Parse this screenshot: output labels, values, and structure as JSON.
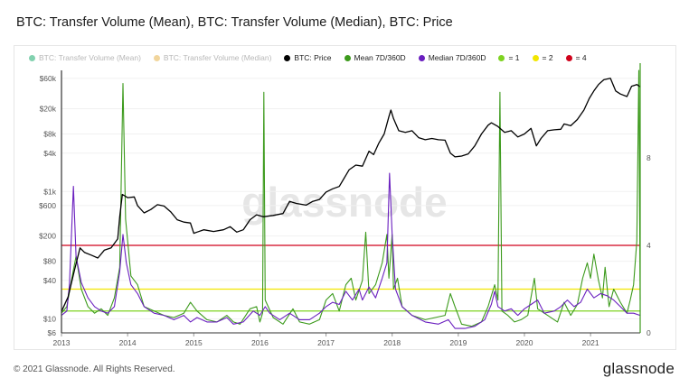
{
  "title": "BTC: Transfer Volume (Mean), BTC: Transfer Volume (Median), BTC: Price",
  "footer": "© 2021 Glassnode. All Rights Reserved.",
  "brand": "glassnode",
  "watermark": "glassnode",
  "legend": [
    {
      "label": "BTC: Transfer Volume (Mean)",
      "color": "#2fb37a",
      "enabled": false
    },
    {
      "label": "BTC: Transfer Volume (Median)",
      "color": "#e7b95a",
      "enabled": false
    },
    {
      "label": "BTC: Price",
      "color": "#000000",
      "enabled": true
    },
    {
      "label": "Mean 7D/360D",
      "color": "#3c9a1c",
      "enabled": true
    },
    {
      "label": "Median 7D/360D",
      "color": "#6a1fbf",
      "enabled": true
    },
    {
      "label": "= 1",
      "color": "#7ed321",
      "enabled": true
    },
    {
      "label": "= 2",
      "color": "#f2e600",
      "enabled": true
    },
    {
      "label": "= 4",
      "color": "#d0021b",
      "enabled": true
    }
  ],
  "chart_data": {
    "type": "line",
    "x_ticks": [
      "2013",
      "2014",
      "2015",
      "2016",
      "2017",
      "2018",
      "2019",
      "2020",
      "2021"
    ],
    "y_left_ticks": [
      "$6",
      "$10",
      "$40",
      "$80",
      "$200",
      "$600",
      "$1k",
      "$4k",
      "$8k",
      "$20k",
      "$60k"
    ],
    "y_left_values": [
      6,
      10,
      40,
      80,
      200,
      600,
      1000,
      4000,
      8000,
      20000,
      60000
    ],
    "y_left_scale": "log",
    "y_left_range": [
      6,
      80000
    ],
    "y_right_ticks": [
      "0",
      "4",
      "8"
    ],
    "y_right_range": [
      0,
      12
    ],
    "x_range": [
      2013.0,
      2021.75
    ],
    "reference_lines": [
      {
        "name": "= 1",
        "value": 1,
        "color": "#7ed321"
      },
      {
        "name": "= 2",
        "value": 2,
        "color": "#f2e600"
      },
      {
        "name": "= 4",
        "value": 4,
        "color": "#d0021b"
      }
    ],
    "series": [
      {
        "name": "BTC: Price",
        "axis": "left",
        "color": "#000000",
        "points": [
          [
            2013.0,
            13
          ],
          [
            2013.1,
            22
          ],
          [
            2013.2,
            60
          ],
          [
            2013.28,
            130
          ],
          [
            2013.35,
            110
          ],
          [
            2013.45,
            100
          ],
          [
            2013.55,
            90
          ],
          [
            2013.65,
            120
          ],
          [
            2013.75,
            130
          ],
          [
            2013.85,
            180
          ],
          [
            2013.88,
            400
          ],
          [
            2013.92,
            900
          ],
          [
            2014.0,
            800
          ],
          [
            2014.1,
            820
          ],
          [
            2014.15,
            600
          ],
          [
            2014.25,
            460
          ],
          [
            2014.35,
            520
          ],
          [
            2014.45,
            620
          ],
          [
            2014.55,
            590
          ],
          [
            2014.65,
            480
          ],
          [
            2014.75,
            360
          ],
          [
            2014.85,
            330
          ],
          [
            2014.95,
            320
          ],
          [
            2015.0,
            220
          ],
          [
            2015.05,
            230
          ],
          [
            2015.15,
            250
          ],
          [
            2015.3,
            235
          ],
          [
            2015.45,
            250
          ],
          [
            2015.55,
            280
          ],
          [
            2015.65,
            230
          ],
          [
            2015.75,
            250
          ],
          [
            2015.85,
            360
          ],
          [
            2015.95,
            430
          ],
          [
            2016.05,
            400
          ],
          [
            2016.2,
            420
          ],
          [
            2016.35,
            450
          ],
          [
            2016.45,
            700
          ],
          [
            2016.55,
            650
          ],
          [
            2016.7,
            610
          ],
          [
            2016.8,
            700
          ],
          [
            2016.9,
            750
          ],
          [
            2017.0,
            980
          ],
          [
            2017.1,
            1100
          ],
          [
            2017.2,
            1200
          ],
          [
            2017.35,
            2200
          ],
          [
            2017.45,
            2600
          ],
          [
            2017.55,
            2500
          ],
          [
            2017.65,
            4300
          ],
          [
            2017.72,
            3800
          ],
          [
            2017.8,
            5800
          ],
          [
            2017.88,
            8000
          ],
          [
            2017.95,
            15000
          ],
          [
            2017.98,
            19000
          ],
          [
            2018.02,
            14000
          ],
          [
            2018.1,
            9000
          ],
          [
            2018.2,
            8500
          ],
          [
            2018.3,
            9000
          ],
          [
            2018.4,
            7000
          ],
          [
            2018.5,
            6500
          ],
          [
            2018.6,
            6800
          ],
          [
            2018.7,
            6500
          ],
          [
            2018.8,
            6400
          ],
          [
            2018.88,
            4000
          ],
          [
            2018.95,
            3500
          ],
          [
            2019.05,
            3600
          ],
          [
            2019.15,
            3900
          ],
          [
            2019.25,
            5200
          ],
          [
            2019.35,
            8000
          ],
          [
            2019.45,
            11000
          ],
          [
            2019.5,
            12000
          ],
          [
            2019.6,
            10500
          ],
          [
            2019.7,
            8500
          ],
          [
            2019.8,
            9000
          ],
          [
            2019.9,
            7200
          ],
          [
            2020.0,
            8000
          ],
          [
            2020.1,
            9800
          ],
          [
            2020.18,
            5200
          ],
          [
            2020.25,
            6800
          ],
          [
            2020.35,
            9000
          ],
          [
            2020.45,
            9300
          ],
          [
            2020.55,
            9500
          ],
          [
            2020.6,
            11500
          ],
          [
            2020.7,
            10800
          ],
          [
            2020.8,
            13500
          ],
          [
            2020.9,
            19000
          ],
          [
            2020.98,
            29000
          ],
          [
            2021.05,
            38000
          ],
          [
            2021.12,
            48000
          ],
          [
            2021.2,
            57000
          ],
          [
            2021.3,
            60000
          ],
          [
            2021.38,
            38000
          ],
          [
            2021.45,
            34000
          ],
          [
            2021.55,
            31000
          ],
          [
            2021.62,
            45000
          ],
          [
            2021.7,
            48000
          ],
          [
            2021.75,
            44000
          ]
        ]
      },
      {
        "name": "Mean 7D/360D",
        "axis": "right",
        "color": "#3c9a1c",
        "points": [
          [
            2013.0,
            0.9
          ],
          [
            2013.08,
            1.2
          ],
          [
            2013.15,
            2.4
          ],
          [
            2013.22,
            3.5
          ],
          [
            2013.3,
            2.0
          ],
          [
            2013.4,
            1.2
          ],
          [
            2013.5,
            0.9
          ],
          [
            2013.6,
            1.1
          ],
          [
            2013.7,
            0.8
          ],
          [
            2013.8,
            1.6
          ],
          [
            2013.88,
            3.0
          ],
          [
            2013.93,
            11.4
          ],
          [
            2013.97,
            5.2
          ],
          [
            2014.05,
            2.6
          ],
          [
            2014.15,
            2.2
          ],
          [
            2014.25,
            1.2
          ],
          [
            2014.4,
            1.0
          ],
          [
            2014.55,
            0.8
          ],
          [
            2014.7,
            0.7
          ],
          [
            2014.85,
            0.9
          ],
          [
            2014.95,
            1.4
          ],
          [
            2015.05,
            1.0
          ],
          [
            2015.2,
            0.6
          ],
          [
            2015.35,
            0.5
          ],
          [
            2015.5,
            0.8
          ],
          [
            2015.6,
            0.5
          ],
          [
            2015.7,
            0.4
          ],
          [
            2015.85,
            1.1
          ],
          [
            2015.95,
            1.2
          ],
          [
            2016.0,
            0.5
          ],
          [
            2016.04,
            0.9
          ],
          [
            2016.06,
            11.0
          ],
          [
            2016.08,
            1.5
          ],
          [
            2016.2,
            0.7
          ],
          [
            2016.35,
            0.4
          ],
          [
            2016.5,
            1.1
          ],
          [
            2016.6,
            0.5
          ],
          [
            2016.75,
            0.4
          ],
          [
            2016.9,
            0.6
          ],
          [
            2017.0,
            1.5
          ],
          [
            2017.1,
            1.8
          ],
          [
            2017.2,
            1.0
          ],
          [
            2017.3,
            2.2
          ],
          [
            2017.38,
            2.5
          ],
          [
            2017.45,
            1.5
          ],
          [
            2017.55,
            2.4
          ],
          [
            2017.6,
            4.6
          ],
          [
            2017.65,
            1.8
          ],
          [
            2017.75,
            2.2
          ],
          [
            2017.85,
            3.2
          ],
          [
            2017.92,
            4.5
          ],
          [
            2017.95,
            2.5
          ],
          [
            2018.0,
            4.5
          ],
          [
            2018.02,
            2.0
          ],
          [
            2018.08,
            2.5
          ],
          [
            2018.15,
            1.2
          ],
          [
            2018.3,
            0.8
          ],
          [
            2018.5,
            0.6
          ],
          [
            2018.65,
            0.7
          ],
          [
            2018.8,
            0.8
          ],
          [
            2018.88,
            1.8
          ],
          [
            2018.95,
            1.2
          ],
          [
            2019.05,
            0.4
          ],
          [
            2019.2,
            0.3
          ],
          [
            2019.35,
            0.5
          ],
          [
            2019.45,
            1.2
          ],
          [
            2019.55,
            2.2
          ],
          [
            2019.6,
            1.5
          ],
          [
            2019.63,
            11.0
          ],
          [
            2019.66,
            1.0
          ],
          [
            2019.75,
            0.8
          ],
          [
            2019.85,
            0.5
          ],
          [
            2019.95,
            0.6
          ],
          [
            2020.05,
            0.8
          ],
          [
            2020.15,
            2.5
          ],
          [
            2020.2,
            1.1
          ],
          [
            2020.35,
            0.8
          ],
          [
            2020.5,
            0.5
          ],
          [
            2020.6,
            1.4
          ],
          [
            2020.7,
            0.8
          ],
          [
            2020.8,
            1.3
          ],
          [
            2020.88,
            2.5
          ],
          [
            2020.95,
            3.2
          ],
          [
            2021.0,
            2.5
          ],
          [
            2021.05,
            3.6
          ],
          [
            2021.12,
            2.4
          ],
          [
            2021.18,
            1.6
          ],
          [
            2021.22,
            3.0
          ],
          [
            2021.28,
            1.2
          ],
          [
            2021.35,
            2.0
          ],
          [
            2021.45,
            1.4
          ],
          [
            2021.55,
            0.9
          ],
          [
            2021.6,
            1.5
          ],
          [
            2021.65,
            2.2
          ],
          [
            2021.7,
            4.2
          ],
          [
            2021.73,
            12.0
          ],
          [
            2021.75,
            1.5
          ]
        ]
      },
      {
        "name": "Median 7D/360D",
        "axis": "right",
        "color": "#6a1fbf",
        "points": [
          [
            2013.0,
            0.8
          ],
          [
            2013.08,
            1.0
          ],
          [
            2013.12,
            2.2
          ],
          [
            2013.18,
            6.7
          ],
          [
            2013.22,
            3.5
          ],
          [
            2013.3,
            2.3
          ],
          [
            2013.4,
            1.6
          ],
          [
            2013.5,
            1.2
          ],
          [
            2013.6,
            1.0
          ],
          [
            2013.7,
            0.9
          ],
          [
            2013.8,
            1.2
          ],
          [
            2013.88,
            2.8
          ],
          [
            2013.93,
            4.5
          ],
          [
            2013.98,
            3.2
          ],
          [
            2014.05,
            2.2
          ],
          [
            2014.15,
            1.8
          ],
          [
            2014.25,
            1.2
          ],
          [
            2014.4,
            0.9
          ],
          [
            2014.55,
            0.8
          ],
          [
            2014.7,
            0.6
          ],
          [
            2014.85,
            0.8
          ],
          [
            2014.95,
            0.5
          ],
          [
            2015.05,
            0.7
          ],
          [
            2015.2,
            0.5
          ],
          [
            2015.35,
            0.5
          ],
          [
            2015.5,
            0.7
          ],
          [
            2015.6,
            0.4
          ],
          [
            2015.75,
            0.5
          ],
          [
            2015.9,
            1.0
          ],
          [
            2016.0,
            0.8
          ],
          [
            2016.08,
            1.2
          ],
          [
            2016.15,
            0.9
          ],
          [
            2016.3,
            0.6
          ],
          [
            2016.45,
            0.9
          ],
          [
            2016.6,
            0.6
          ],
          [
            2016.75,
            0.6
          ],
          [
            2016.9,
            0.9
          ],
          [
            2017.0,
            1.2
          ],
          [
            2017.1,
            1.4
          ],
          [
            2017.2,
            1.3
          ],
          [
            2017.3,
            1.9
          ],
          [
            2017.4,
            1.5
          ],
          [
            2017.5,
            2.0
          ],
          [
            2017.55,
            1.5
          ],
          [
            2017.65,
            2.1
          ],
          [
            2017.75,
            1.6
          ],
          [
            2017.85,
            2.5
          ],
          [
            2017.92,
            3.2
          ],
          [
            2017.96,
            7.3
          ],
          [
            2018.0,
            4.5
          ],
          [
            2018.05,
            2.0
          ],
          [
            2018.15,
            1.2
          ],
          [
            2018.3,
            0.8
          ],
          [
            2018.5,
            0.5
          ],
          [
            2018.7,
            0.4
          ],
          [
            2018.85,
            0.6
          ],
          [
            2018.95,
            0.2
          ],
          [
            2019.1,
            0.2
          ],
          [
            2019.25,
            0.3
          ],
          [
            2019.4,
            0.6
          ],
          [
            2019.5,
            1.3
          ],
          [
            2019.55,
            1.9
          ],
          [
            2019.6,
            1.2
          ],
          [
            2019.7,
            1.0
          ],
          [
            2019.8,
            1.1
          ],
          [
            2019.9,
            0.8
          ],
          [
            2020.0,
            1.1
          ],
          [
            2020.1,
            1.3
          ],
          [
            2020.2,
            1.5
          ],
          [
            2020.3,
            0.9
          ],
          [
            2020.45,
            1.0
          ],
          [
            2020.55,
            1.2
          ],
          [
            2020.65,
            1.5
          ],
          [
            2020.75,
            1.2
          ],
          [
            2020.85,
            1.4
          ],
          [
            2020.95,
            2.0
          ],
          [
            2021.05,
            1.6
          ],
          [
            2021.15,
            1.8
          ],
          [
            2021.25,
            1.7
          ],
          [
            2021.35,
            1.5
          ],
          [
            2021.45,
            1.2
          ],
          [
            2021.55,
            0.9
          ],
          [
            2021.65,
            0.9
          ],
          [
            2021.75,
            0.8
          ]
        ]
      }
    ]
  }
}
